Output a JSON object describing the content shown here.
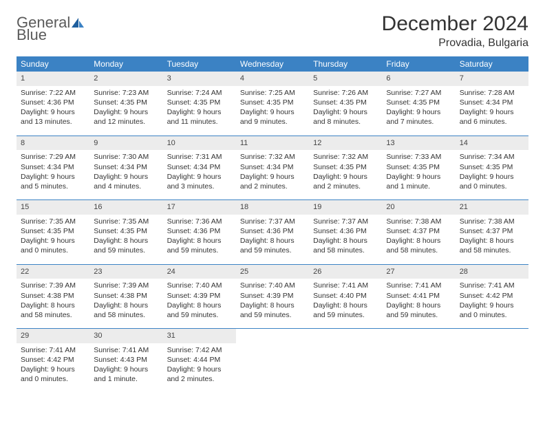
{
  "brand": {
    "general": "General",
    "blue": "Blue"
  },
  "title": "December 2024",
  "location": "Provadia, Bulgaria",
  "colors": {
    "accent": "#3b82c4",
    "header_bg": "#3b82c4",
    "daynum_bg": "#ececec",
    "text": "#333333"
  },
  "fonts": {
    "title_size": 30,
    "location_size": 16,
    "dow_size": 12,
    "body_size": 10.5
  },
  "dow": [
    "Sunday",
    "Monday",
    "Tuesday",
    "Wednesday",
    "Thursday",
    "Friday",
    "Saturday"
  ],
  "days": [
    {
      "n": 1,
      "sr": "7:22 AM",
      "ss": "4:36 PM",
      "dl": "9 hours and 13 minutes."
    },
    {
      "n": 2,
      "sr": "7:23 AM",
      "ss": "4:35 PM",
      "dl": "9 hours and 12 minutes."
    },
    {
      "n": 3,
      "sr": "7:24 AM",
      "ss": "4:35 PM",
      "dl": "9 hours and 11 minutes."
    },
    {
      "n": 4,
      "sr": "7:25 AM",
      "ss": "4:35 PM",
      "dl": "9 hours and 9 minutes."
    },
    {
      "n": 5,
      "sr": "7:26 AM",
      "ss": "4:35 PM",
      "dl": "9 hours and 8 minutes."
    },
    {
      "n": 6,
      "sr": "7:27 AM",
      "ss": "4:35 PM",
      "dl": "9 hours and 7 minutes."
    },
    {
      "n": 7,
      "sr": "7:28 AM",
      "ss": "4:34 PM",
      "dl": "9 hours and 6 minutes."
    },
    {
      "n": 8,
      "sr": "7:29 AM",
      "ss": "4:34 PM",
      "dl": "9 hours and 5 minutes."
    },
    {
      "n": 9,
      "sr": "7:30 AM",
      "ss": "4:34 PM",
      "dl": "9 hours and 4 minutes."
    },
    {
      "n": 10,
      "sr": "7:31 AM",
      "ss": "4:34 PM",
      "dl": "9 hours and 3 minutes."
    },
    {
      "n": 11,
      "sr": "7:32 AM",
      "ss": "4:34 PM",
      "dl": "9 hours and 2 minutes."
    },
    {
      "n": 12,
      "sr": "7:32 AM",
      "ss": "4:35 PM",
      "dl": "9 hours and 2 minutes."
    },
    {
      "n": 13,
      "sr": "7:33 AM",
      "ss": "4:35 PM",
      "dl": "9 hours and 1 minute."
    },
    {
      "n": 14,
      "sr": "7:34 AM",
      "ss": "4:35 PM",
      "dl": "9 hours and 0 minutes."
    },
    {
      "n": 15,
      "sr": "7:35 AM",
      "ss": "4:35 PM",
      "dl": "9 hours and 0 minutes."
    },
    {
      "n": 16,
      "sr": "7:35 AM",
      "ss": "4:35 PM",
      "dl": "8 hours and 59 minutes."
    },
    {
      "n": 17,
      "sr": "7:36 AM",
      "ss": "4:36 PM",
      "dl": "8 hours and 59 minutes."
    },
    {
      "n": 18,
      "sr": "7:37 AM",
      "ss": "4:36 PM",
      "dl": "8 hours and 59 minutes."
    },
    {
      "n": 19,
      "sr": "7:37 AM",
      "ss": "4:36 PM",
      "dl": "8 hours and 58 minutes."
    },
    {
      "n": 20,
      "sr": "7:38 AM",
      "ss": "4:37 PM",
      "dl": "8 hours and 58 minutes."
    },
    {
      "n": 21,
      "sr": "7:38 AM",
      "ss": "4:37 PM",
      "dl": "8 hours and 58 minutes."
    },
    {
      "n": 22,
      "sr": "7:39 AM",
      "ss": "4:38 PM",
      "dl": "8 hours and 58 minutes."
    },
    {
      "n": 23,
      "sr": "7:39 AM",
      "ss": "4:38 PM",
      "dl": "8 hours and 58 minutes."
    },
    {
      "n": 24,
      "sr": "7:40 AM",
      "ss": "4:39 PM",
      "dl": "8 hours and 59 minutes."
    },
    {
      "n": 25,
      "sr": "7:40 AM",
      "ss": "4:39 PM",
      "dl": "8 hours and 59 minutes."
    },
    {
      "n": 26,
      "sr": "7:41 AM",
      "ss": "4:40 PM",
      "dl": "8 hours and 59 minutes."
    },
    {
      "n": 27,
      "sr": "7:41 AM",
      "ss": "4:41 PM",
      "dl": "8 hours and 59 minutes."
    },
    {
      "n": 28,
      "sr": "7:41 AM",
      "ss": "4:42 PM",
      "dl": "9 hours and 0 minutes."
    },
    {
      "n": 29,
      "sr": "7:41 AM",
      "ss": "4:42 PM",
      "dl": "9 hours and 0 minutes."
    },
    {
      "n": 30,
      "sr": "7:41 AM",
      "ss": "4:43 PM",
      "dl": "9 hours and 1 minute."
    },
    {
      "n": 31,
      "sr": "7:42 AM",
      "ss": "4:44 PM",
      "dl": "9 hours and 2 minutes."
    }
  ],
  "labels": {
    "sunrise": "Sunrise: ",
    "sunset": "Sunset: ",
    "daylight": "Daylight: "
  },
  "layout": {
    "start_offset": 0,
    "total_cells": 35
  }
}
